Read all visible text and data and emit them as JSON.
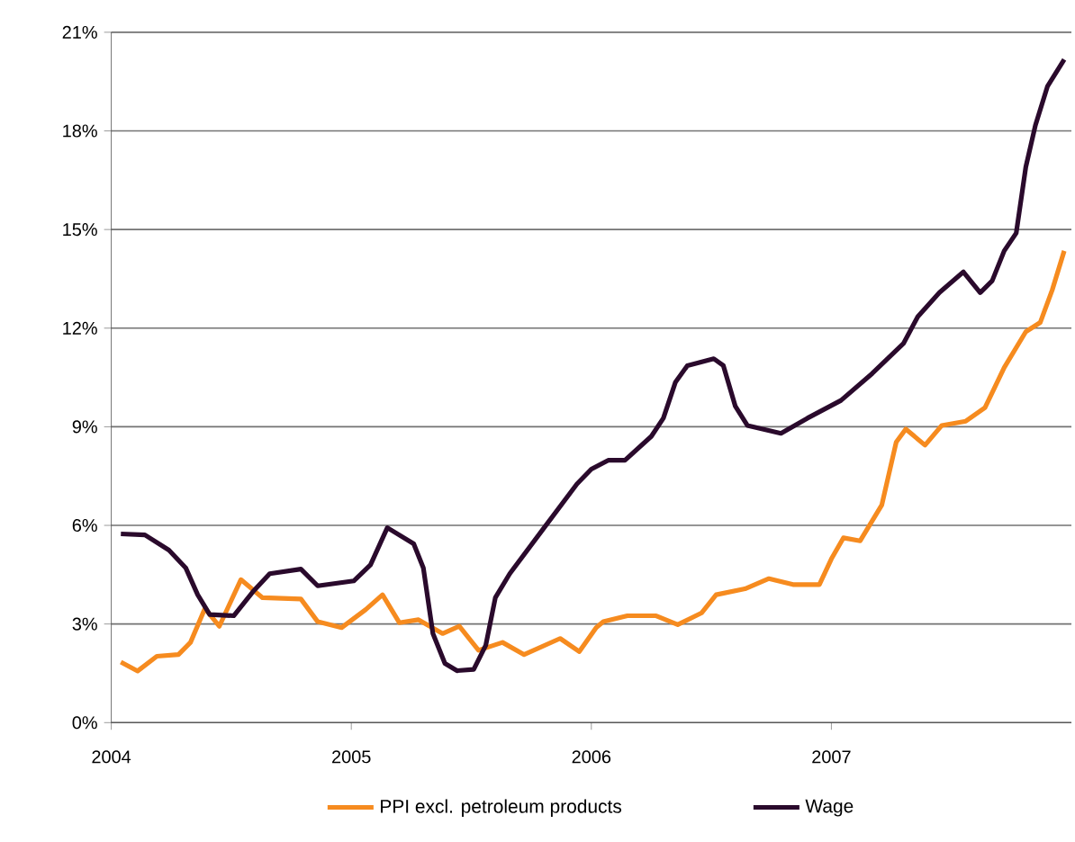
{
  "chart_data": {
    "type": "line",
    "xlim": [
      2004,
      2008
    ],
    "xticks": [
      2004,
      2005,
      2006,
      2007
    ],
    "ylim": [
      0,
      21
    ],
    "yticks": [
      {
        "value": 0,
        "label": "0%"
      },
      {
        "value": 3,
        "label": "3%"
      },
      {
        "value": 6,
        "label": "6%"
      },
      {
        "value": 9,
        "label": "9%"
      },
      {
        "value": 12,
        "label": "12%"
      },
      {
        "value": 15,
        "label": "15%"
      },
      {
        "value": 18,
        "label": "18%"
      },
      {
        "value": 21,
        "label": "21%"
      }
    ],
    "grid": "y",
    "legend": "bottom",
    "marker": "none",
    "line_style": "solid",
    "series": [
      {
        "name": "PPI excl. petroleum products",
        "color": "#f68b1f",
        "x": [
          2004.04,
          2004.11,
          2004.19,
          2004.28,
          2004.33,
          2004.39,
          2004.45,
          2004.54,
          2004.63,
          2004.79,
          2004.86,
          2004.96,
          2005.06,
          2005.13,
          2005.2,
          2005.28,
          2005.38,
          2005.45,
          2005.53,
          2005.63,
          2005.72,
          2005.87,
          2005.95,
          2006.02,
          2006.05,
          2006.15,
          2006.27,
          2006.36,
          2006.46,
          2006.52,
          2006.64,
          2006.74,
          2006.84,
          2006.95,
          2007.0,
          2007.05,
          2007.12,
          2007.21,
          2007.27,
          2007.31,
          2007.39,
          2007.46,
          2007.56,
          2007.64,
          2007.72,
          2007.81,
          2007.87,
          2007.92,
          2007.97
        ],
        "values": [
          1.84,
          1.57,
          2.02,
          2.07,
          2.44,
          3.47,
          2.93,
          4.35,
          3.8,
          3.76,
          3.07,
          2.89,
          3.44,
          3.89,
          3.04,
          3.13,
          2.71,
          2.93,
          2.2,
          2.44,
          2.07,
          2.56,
          2.16,
          2.89,
          3.07,
          3.25,
          3.25,
          2.98,
          3.34,
          3.89,
          4.07,
          4.38,
          4.2,
          4.2,
          4.98,
          5.62,
          5.53,
          6.62,
          8.53,
          8.93,
          8.44,
          9.04,
          9.17,
          9.58,
          10.8,
          11.89,
          12.17,
          13.16,
          14.35
        ]
      },
      {
        "name": "Wage",
        "color": "#2a0a2c",
        "x": [
          2004.04,
          2004.14,
          2004.24,
          2004.31,
          2004.36,
          2004.41,
          2004.51,
          2004.59,
          2004.66,
          2004.79,
          2004.86,
          2005.01,
          2005.08,
          2005.15,
          2005.26,
          2005.3,
          2005.34,
          2005.39,
          2005.44,
          2005.51,
          2005.56,
          2005.6,
          2005.66,
          2005.79,
          2005.94,
          2006.0,
          2006.07,
          2006.14,
          2006.25,
          2006.3,
          2006.35,
          2006.4,
          2006.51,
          2006.55,
          2006.6,
          2006.65,
          2006.79,
          2006.9,
          2007.04,
          2007.17,
          2007.3,
          2007.36,
          2007.45,
          2007.55,
          2007.62,
          2007.67,
          2007.72,
          2007.77,
          2007.81,
          2007.85,
          2007.9,
          2007.97
        ],
        "values": [
          5.74,
          5.71,
          5.25,
          4.71,
          3.89,
          3.29,
          3.25,
          3.98,
          4.53,
          4.67,
          4.16,
          4.31,
          4.8,
          5.93,
          5.44,
          4.71,
          2.71,
          1.8,
          1.58,
          1.62,
          2.35,
          3.8,
          4.53,
          5.8,
          7.26,
          7.71,
          7.98,
          7.98,
          8.71,
          9.26,
          10.35,
          10.86,
          11.07,
          10.86,
          9.62,
          9.04,
          8.8,
          9.26,
          9.8,
          10.62,
          11.53,
          12.35,
          13.08,
          13.71,
          13.08,
          13.44,
          14.35,
          14.89,
          16.9,
          18.17,
          19.35,
          20.17
        ]
      }
    ]
  }
}
